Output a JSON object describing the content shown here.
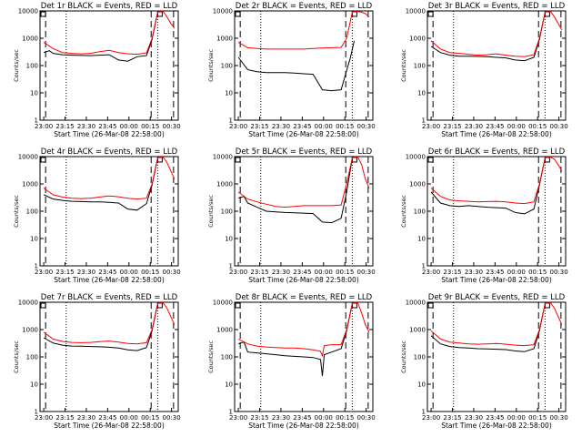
{
  "x_ticks": [
    "23:00",
    "23:15",
    "23:30",
    "23:45",
    "00:00",
    "00:15",
    "00:30"
  ],
  "y_ticks": [
    "1",
    "10",
    "100",
    "1000",
    "10000"
  ],
  "xlabel": "Start Time (26-Mar-08 22:58:00)",
  "ylabel": "Counts/sec",
  "colors": {
    "events": "#000000",
    "lld": "#ff0000"
  },
  "chart_data": [
    {
      "type": "line",
      "title": "Det 1r BLACK = Events, RED = LLD",
      "series": [
        {
          "name": "Events",
          "x": [
            0,
            3,
            5,
            10,
            15,
            20,
            25,
            30,
            35,
            40,
            45,
            50,
            55,
            58,
            61,
            62
          ],
          "y": [
            300,
            350,
            280,
            250,
            240,
            235,
            230,
            240,
            250,
            160,
            145,
            210,
            230,
            900,
            9000,
            9500
          ]
        },
        {
          "name": "LLD",
          "x": [
            0,
            5,
            10,
            15,
            20,
            25,
            30,
            35,
            40,
            45,
            50,
            55,
            58,
            61,
            62,
            64,
            66,
            68,
            70
          ],
          "y": [
            700,
            420,
            300,
            280,
            270,
            280,
            320,
            360,
            300,
            270,
            260,
            290,
            1000,
            9000,
            9500,
            9500,
            6000,
            3500,
            2300
          ]
        }
      ]
    },
    {
      "type": "line",
      "title": "Det 2r BLACK = Events, RED = LLD",
      "series": [
        {
          "name": "Events",
          "x": [
            0,
            5,
            10,
            15,
            20,
            25,
            30,
            35,
            40,
            45,
            50,
            55,
            60,
            62
          ],
          "y": [
            200,
            70,
            60,
            55,
            55,
            55,
            53,
            50,
            48,
            13,
            12,
            13,
            200,
            800
          ]
        },
        {
          "name": "LLD",
          "x": [
            0,
            5,
            10,
            15,
            20,
            25,
            30,
            35,
            40,
            45,
            50,
            55,
            58,
            61,
            62,
            64,
            66,
            68,
            70
          ],
          "y": [
            700,
            450,
            420,
            400,
            400,
            400,
            400,
            400,
            420,
            440,
            450,
            460,
            1000,
            9000,
            9500,
            9500,
            9000,
            8000,
            6000
          ]
        }
      ]
    },
    {
      "type": "line",
      "title": "Det 3r BLACK = Events, RED = LLD",
      "series": [
        {
          "name": "Events",
          "x": [
            0,
            5,
            10,
            15,
            20,
            25,
            30,
            35,
            40,
            45,
            50,
            55,
            58,
            61,
            62
          ],
          "y": [
            500,
            300,
            240,
            220,
            220,
            215,
            210,
            200,
            190,
            160,
            150,
            200,
            900,
            9000,
            9500
          ]
        },
        {
          "name": "LLD",
          "x": [
            0,
            5,
            10,
            15,
            20,
            25,
            30,
            35,
            40,
            45,
            50,
            55,
            58,
            61,
            62,
            64,
            66,
            68,
            70
          ],
          "y": [
            800,
            400,
            300,
            280,
            260,
            240,
            250,
            270,
            240,
            220,
            210,
            250,
            1000,
            9000,
            9500,
            9500,
            6000,
            3500,
            2000
          ]
        }
      ]
    },
    {
      "type": "line",
      "title": "Det 4r BLACK = Events, RED = LLD",
      "series": [
        {
          "name": "Events",
          "x": [
            0,
            5,
            10,
            15,
            20,
            25,
            30,
            35,
            40,
            45,
            50,
            55,
            58,
            61,
            62
          ],
          "y": [
            400,
            280,
            250,
            230,
            225,
            220,
            220,
            210,
            200,
            120,
            110,
            190,
            900,
            9000,
            9500
          ]
        },
        {
          "name": "LLD",
          "x": [
            0,
            5,
            10,
            15,
            20,
            25,
            30,
            35,
            40,
            45,
            50,
            55,
            58,
            61,
            62,
            64,
            66,
            68,
            70
          ],
          "y": [
            700,
            400,
            330,
            300,
            290,
            300,
            330,
            360,
            340,
            300,
            280,
            300,
            1000,
            9000,
            9500,
            9500,
            6000,
            3000,
            1500
          ]
        }
      ]
    },
    {
      "type": "line",
      "title": "Det 5r BLACK = Events, RED = LLD",
      "series": [
        {
          "name": "Events",
          "x": [
            0,
            3,
            5,
            10,
            15,
            20,
            25,
            30,
            35,
            40,
            45,
            50,
            55,
            58,
            61,
            62
          ],
          "y": [
            300,
            350,
            200,
            140,
            100,
            95,
            90,
            88,
            85,
            82,
            40,
            38,
            55,
            500,
            9000,
            9500
          ]
        },
        {
          "name": "LLD",
          "x": [
            0,
            5,
            10,
            15,
            20,
            25,
            30,
            35,
            40,
            45,
            50,
            55,
            58,
            61,
            62,
            64,
            66,
            68,
            70
          ],
          "y": [
            500,
            280,
            220,
            180,
            150,
            140,
            150,
            160,
            160,
            160,
            160,
            170,
            1000,
            9000,
            9500,
            9500,
            5000,
            1500,
            700
          ]
        }
      ]
    },
    {
      "type": "line",
      "title": "Det 6r BLACK = Events, RED = LLD",
      "series": [
        {
          "name": "Events",
          "x": [
            0,
            5,
            10,
            15,
            20,
            25,
            30,
            35,
            40,
            45,
            50,
            55,
            58,
            61,
            62
          ],
          "y": [
            500,
            200,
            160,
            150,
            160,
            150,
            140,
            135,
            130,
            90,
            80,
            120,
            900,
            9000,
            9500
          ]
        },
        {
          "name": "LLD",
          "x": [
            0,
            5,
            10,
            15,
            20,
            25,
            30,
            35,
            40,
            45,
            50,
            55,
            58,
            61,
            62,
            64,
            66,
            68,
            70
          ],
          "y": [
            700,
            350,
            260,
            240,
            230,
            220,
            225,
            230,
            220,
            200,
            190,
            220,
            1000,
            9000,
            9500,
            9500,
            8000,
            5000,
            3000
          ]
        }
      ]
    },
    {
      "type": "line",
      "title": "Det 7r BLACK = Events, RED = LLD",
      "series": [
        {
          "name": "Events",
          "x": [
            0,
            5,
            10,
            15,
            20,
            25,
            30,
            35,
            40,
            45,
            50,
            55,
            58,
            61,
            62
          ],
          "y": [
            500,
            320,
            270,
            250,
            245,
            240,
            235,
            225,
            210,
            180,
            170,
            220,
            900,
            9000,
            9500
          ]
        },
        {
          "name": "LLD",
          "x": [
            0,
            5,
            10,
            15,
            20,
            25,
            30,
            35,
            40,
            45,
            50,
            55,
            58,
            61,
            62,
            64,
            66,
            68,
            70
          ],
          "y": [
            800,
            450,
            370,
            340,
            330,
            340,
            360,
            380,
            350,
            310,
            300,
            330,
            1000,
            9000,
            9500,
            9500,
            6000,
            3000,
            1500
          ]
        }
      ]
    },
    {
      "type": "line",
      "title": "Det 8r BLACK = Events, RED = LLD",
      "series": [
        {
          "name": "Events",
          "x": [
            0,
            3,
            5,
            10,
            15,
            20,
            25,
            30,
            35,
            40,
            44,
            45,
            46,
            50,
            55,
            58,
            61,
            62
          ],
          "y": [
            300,
            350,
            150,
            140,
            130,
            120,
            110,
            105,
            100,
            95,
            80,
            20,
            120,
            150,
            200,
            900,
            9000,
            9500
          ]
        },
        {
          "name": "LLD",
          "x": [
            0,
            5,
            10,
            15,
            20,
            25,
            30,
            35,
            40,
            44,
            45,
            46,
            50,
            55,
            58,
            61,
            62,
            64,
            66,
            68,
            70
          ],
          "y": [
            450,
            300,
            250,
            230,
            220,
            210,
            210,
            200,
            180,
            160,
            110,
            260,
            280,
            280,
            1000,
            9000,
            9500,
            9500,
            4000,
            1500,
            800
          ]
        }
      ]
    },
    {
      "type": "line",
      "title": "Det 9r BLACK = Events, RED = LLD",
      "series": [
        {
          "name": "Events",
          "x": [
            0,
            5,
            10,
            15,
            20,
            25,
            30,
            35,
            40,
            45,
            50,
            55,
            58,
            61,
            62
          ],
          "y": [
            600,
            300,
            240,
            220,
            210,
            200,
            195,
            190,
            185,
            165,
            155,
            200,
            900,
            9000,
            9500
          ]
        },
        {
          "name": "LLD",
          "x": [
            0,
            5,
            10,
            15,
            20,
            25,
            30,
            35,
            40,
            45,
            50,
            55,
            58,
            61,
            62,
            64,
            66,
            68,
            70
          ],
          "y": [
            900,
            450,
            350,
            320,
            300,
            290,
            300,
            310,
            290,
            270,
            260,
            280,
            1000,
            9000,
            9500,
            9500,
            6000,
            3000,
            1500
          ]
        }
      ]
    }
  ]
}
